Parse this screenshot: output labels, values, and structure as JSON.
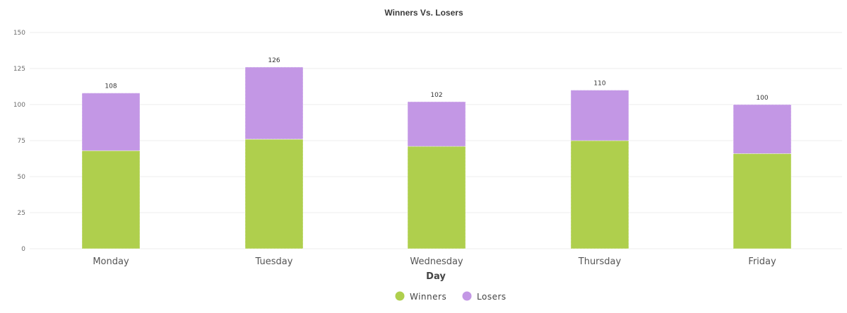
{
  "chart_data": {
    "type": "bar",
    "stacked": true,
    "title": "Winners Vs. Losers",
    "xlabel": "Day",
    "ylabel": "",
    "categories": [
      "Monday",
      "Tuesday",
      "Wednesday",
      "Thursday",
      "Friday"
    ],
    "series": [
      {
        "name": "Winners",
        "values": [
          68,
          76,
          71,
          75,
          66
        ],
        "color": "#afcf4d"
      },
      {
        "name": "Losers",
        "values": [
          40,
          50,
          31,
          35,
          34
        ],
        "color": "#c397e5"
      }
    ],
    "totals": [
      108,
      126,
      102,
      110,
      100
    ],
    "ylim": [
      0,
      150
    ],
    "yticks": [
      0,
      25,
      50,
      75,
      100,
      125,
      150
    ],
    "grid": true,
    "legend": "bottom-center"
  }
}
